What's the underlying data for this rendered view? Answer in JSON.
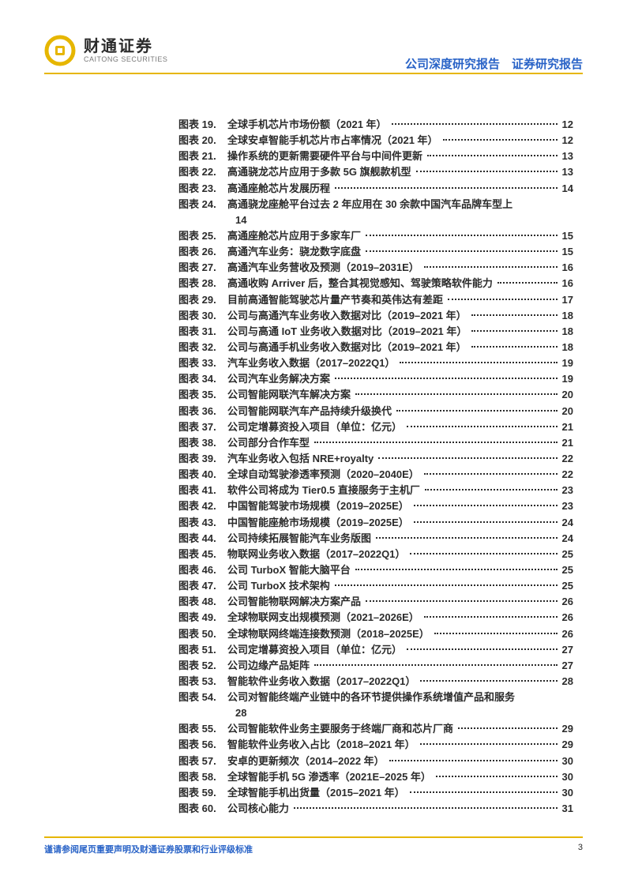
{
  "brand": {
    "cn": "财通证券",
    "en": "CAITONG SECURITIES"
  },
  "header_right": "公司深度研究报告　证券研究报告",
  "accent_color": "#e6b600",
  "link_color": "#2963c7",
  "text_color": "#2b2b2b",
  "toc_prefix": "图表",
  "entries": [
    {
      "n": "19.",
      "t": "全球手机芯片市场份额（2021 年）",
      "p": "12"
    },
    {
      "n": "20.",
      "t": "全球安卓智能手机芯片市占率情况（2021 年）",
      "p": "12"
    },
    {
      "n": "21.",
      "t": "操作系统的更新需要硬件平台与中间件更新",
      "p": "13"
    },
    {
      "n": "22.",
      "t": "高通骁龙芯片应用于多款 5G 旗舰款机型",
      "p": "13"
    },
    {
      "n": "23.",
      "t": "高通座舱芯片发展历程",
      "p": "14"
    },
    {
      "n": "24.",
      "t": "高通骁龙座舱平台过去 2 年应用在 30 余款中国汽车品牌车型上",
      "p": "14",
      "wrap": true
    },
    {
      "n": "25.",
      "t": "高通座舱芯片应用于多家车厂",
      "p": "15"
    },
    {
      "n": "26.",
      "t": "高通汽车业务：骁龙数字底盘",
      "p": "15"
    },
    {
      "n": "27.",
      "t": "高通汽车业务营收及预测（2019–2031E）",
      "p": "16"
    },
    {
      "n": "28.",
      "t": "高通收购 Arriver 后，整合其视觉感知、驾驶策略软件能力",
      "p": "16"
    },
    {
      "n": "29.",
      "t": "目前高通智能驾驶芯片量产节奏和英伟达有差距",
      "p": "17"
    },
    {
      "n": "30.",
      "t": "公司与高通汽车业务收入数据对比（2019–2021 年）",
      "p": "18"
    },
    {
      "n": "31.",
      "t": "公司与高通 IoT 业务收入数据对比（2019–2021 年）",
      "p": "18"
    },
    {
      "n": "32.",
      "t": "公司与高通手机业务收入数据对比（2019–2021 年）",
      "p": "18"
    },
    {
      "n": "33.",
      "t": "汽车业务收入数据（2017–2022Q1）",
      "p": "19"
    },
    {
      "n": "34.",
      "t": "公司汽车业务解决方案",
      "p": "19"
    },
    {
      "n": "35.",
      "t": "公司智能网联汽车解决方案",
      "p": "20"
    },
    {
      "n": "36.",
      "t": "公司智能网联汽车产品持续升级换代",
      "p": "20"
    },
    {
      "n": "37.",
      "t": "公司定增募资投入项目（单位：亿元）",
      "p": "21"
    },
    {
      "n": "38.",
      "t": "公司部分合作车型",
      "p": "21"
    },
    {
      "n": "39.",
      "t": "汽车业务收入包括 NRE+royalty",
      "p": "22"
    },
    {
      "n": "40.",
      "t": "全球自动驾驶渗透率预测（2020–2040E）",
      "p": "22"
    },
    {
      "n": "41.",
      "t": "软件公司将成为 Tier0.5 直接服务于主机厂",
      "p": "23"
    },
    {
      "n": "42.",
      "t": "中国智能驾驶市场规模（2019–2025E）",
      "p": "23"
    },
    {
      "n": "43.",
      "t": "中国智能座舱市场规模（2019–2025E）",
      "p": "24"
    },
    {
      "n": "44.",
      "t": "公司持续拓展智能汽车业务版图",
      "p": "24"
    },
    {
      "n": "45.",
      "t": "物联网业务收入数据（2017–2022Q1）",
      "p": "25"
    },
    {
      "n": "46.",
      "t": "公司 TurboX 智能大脑平台",
      "p": "25"
    },
    {
      "n": "47.",
      "t": "公司 TurboX 技术架构",
      "p": "25"
    },
    {
      "n": "48.",
      "t": "公司智能物联网解决方案产品",
      "p": "26"
    },
    {
      "n": "49.",
      "t": "全球物联网支出规模预测（2021–2026E）",
      "p": "26"
    },
    {
      "n": "50.",
      "t": "全球物联网终端连接数预测（2018–2025E）",
      "p": "26"
    },
    {
      "n": "51.",
      "t": "公司定增募资投入项目（单位：亿元）",
      "p": "27"
    },
    {
      "n": "52.",
      "t": "公司边缘产品矩阵",
      "p": "27"
    },
    {
      "n": "53.",
      "t": "智能软件业务收入数据（2017–2022Q1）",
      "p": "28"
    },
    {
      "n": "54.",
      "t": "公司对智能终端产业链中的各环节提供操作系统增值产品和服务",
      "p": "28",
      "wrap": true
    },
    {
      "n": "55.",
      "t": "公司智能软件业务主要服务于终端厂商和芯片厂商",
      "p": "29"
    },
    {
      "n": "56.",
      "t": "智能软件业务收入占比（2018–2021 年）",
      "p": "29"
    },
    {
      "n": "57.",
      "t": "安卓的更新频次（2014–2022 年）",
      "p": "30"
    },
    {
      "n": "58.",
      "t": "全球智能手机 5G 渗透率（2021E–2025 年）",
      "p": "30"
    },
    {
      "n": "59.",
      "t": "全球智能手机出货量（2015–2021 年）",
      "p": "30"
    },
    {
      "n": "60.",
      "t": "公司核心能力",
      "p": "31"
    }
  ],
  "footer_text": "谨请参阅尾页重要声明及财通证券股票和行业评级标准",
  "page_number": "3"
}
